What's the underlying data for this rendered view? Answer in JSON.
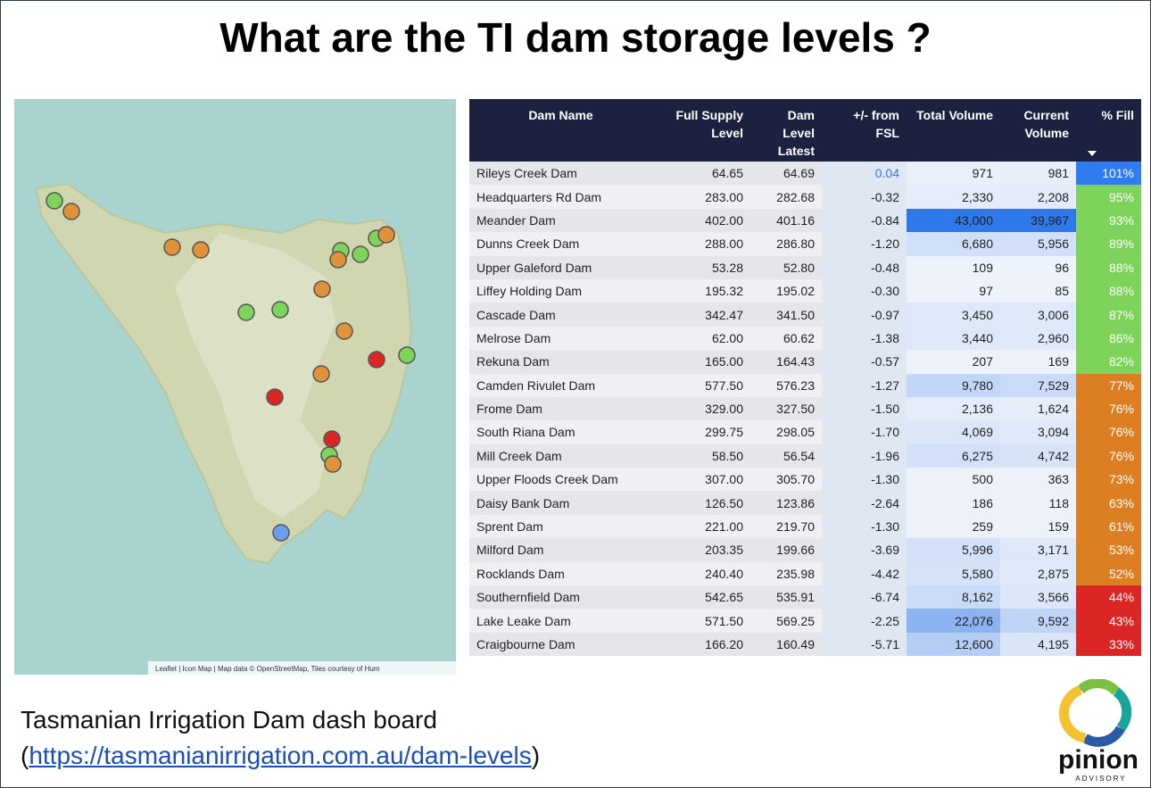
{
  "title": "What are the TI dam storage levels ?",
  "map": {
    "attribution": "Leaflet | Icon Map | Map data © OpenStreetMap, Tiles courtesy of Hum"
  },
  "table": {
    "columns": [
      "Dam Name",
      "Full Supply Level",
      "Dam Level Latest",
      "+/- from FSL",
      "Total Volume",
      "Current Volume",
      "% Fill"
    ],
    "rows": [
      [
        "Rileys Creek Dam",
        "64.65",
        "64.69",
        "0.04",
        "971",
        "981",
        "101%"
      ],
      [
        "Headquarters Rd Dam",
        "283.00",
        "282.68",
        "-0.32",
        "2,330",
        "2,208",
        "95%"
      ],
      [
        "Meander Dam",
        "402.00",
        "401.16",
        "-0.84",
        "43,000",
        "39,967",
        "93%"
      ],
      [
        "Dunns Creek Dam",
        "288.00",
        "286.80",
        "-1.20",
        "6,680",
        "5,956",
        "89%"
      ],
      [
        "Upper Galeford Dam",
        "53.28",
        "52.80",
        "-0.48",
        "109",
        "96",
        "88%"
      ],
      [
        "Liffey Holding Dam",
        "195.32",
        "195.02",
        "-0.30",
        "97",
        "85",
        "88%"
      ],
      [
        "Cascade Dam",
        "342.47",
        "341.50",
        "-0.97",
        "3,450",
        "3,006",
        "87%"
      ],
      [
        "Melrose Dam",
        "62.00",
        "60.62",
        "-1.38",
        "3,440",
        "2,960",
        "86%"
      ],
      [
        "Rekuna Dam",
        "165.00",
        "164.43",
        "-0.57",
        "207",
        "169",
        "82%"
      ],
      [
        "Camden Rivulet Dam",
        "577.50",
        "576.23",
        "-1.27",
        "9,780",
        "7,529",
        "77%"
      ],
      [
        "Frome Dam",
        "329.00",
        "327.50",
        "-1.50",
        "2,136",
        "1,624",
        "76%"
      ],
      [
        "South Riana Dam",
        "299.75",
        "298.05",
        "-1.70",
        "4,069",
        "3,094",
        "76%"
      ],
      [
        "Mill Creek Dam",
        "58.50",
        "56.54",
        "-1.96",
        "6,275",
        "4,742",
        "76%"
      ],
      [
        "Upper Floods Creek Dam",
        "307.00",
        "305.70",
        "-1.30",
        "500",
        "363",
        "73%"
      ],
      [
        "Daisy Bank Dam",
        "126.50",
        "123.86",
        "-2.64",
        "186",
        "118",
        "63%"
      ],
      [
        "Sprent Dam",
        "221.00",
        "219.70",
        "-1.30",
        "259",
        "159",
        "61%"
      ],
      [
        "Milford Dam",
        "203.35",
        "199.66",
        "-3.69",
        "5,996",
        "3,171",
        "53%"
      ],
      [
        "Rocklands Dam",
        "240.40",
        "235.98",
        "-4.42",
        "5,580",
        "2,875",
        "52%"
      ],
      [
        "Southernfield Dam",
        "542.65",
        "535.91",
        "-6.74",
        "8,162",
        "3,566",
        "44%"
      ],
      [
        "Lake Leake Dam",
        "571.50",
        "569.25",
        "-2.25",
        "22,076",
        "9,592",
        "43%"
      ],
      [
        "Craigbourne Dam",
        "166.20",
        "160.49",
        "-5.71",
        "12,600",
        "4,195",
        "33%"
      ]
    ],
    "fill_colors": [
      "#2f7bf0",
      "#7ed35a",
      "#7ed35a",
      "#7ed35a",
      "#7ed35a",
      "#7ed35a",
      "#7ed35a",
      "#7ed35a",
      "#7ed35a",
      "#dc7f22",
      "#dc7f22",
      "#dc7f22",
      "#dc7f22",
      "#dc7f22",
      "#dc7f22",
      "#dc7f22",
      "#dc7f22",
      "#dc7f22",
      "#dc2626",
      "#dc2626",
      "#dc2626"
    ]
  },
  "footer": {
    "caption": "Tasmanian Irrigation Dam dash board",
    "open": "(",
    "link": "https://tasmanianirrigation.com.au/dam-levels",
    "close": ")"
  },
  "logo": {
    "name": "pinion",
    "tagline": "ADVISORY"
  }
}
